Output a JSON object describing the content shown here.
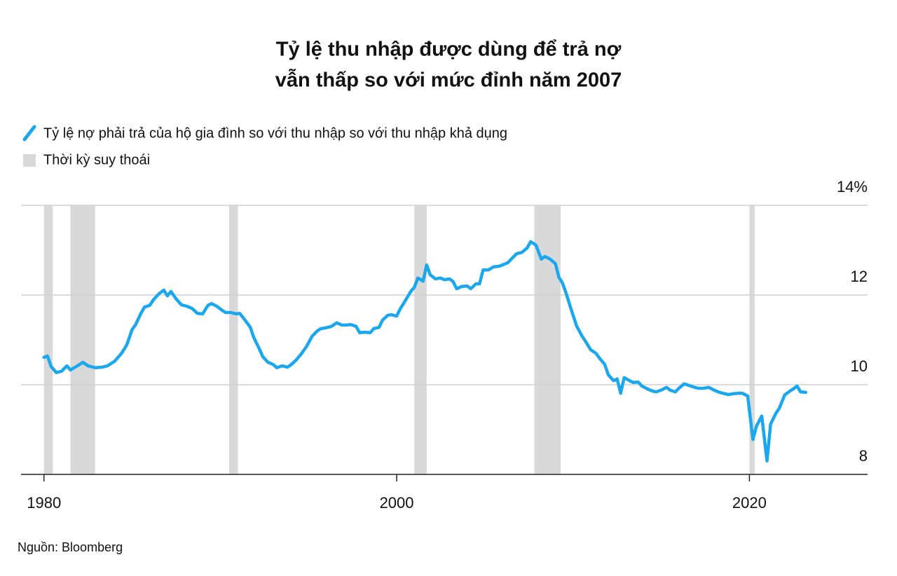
{
  "chart_data": {
    "type": "line",
    "title": [
      "Tỷ lệ thu nhập được dùng để trả nợ",
      "vẫn thấp so với mức đỉnh năm 2007"
    ],
    "source": "Nguồn: Bloomberg",
    "recession_label": "Thời kỳ suy thoái",
    "recession_color": "#d9d9d9",
    "recessions": [
      [
        1980.0,
        1980.5
      ],
      [
        1981.5,
        1982.9
      ],
      [
        1990.5,
        1991.0
      ],
      [
        2001.0,
        2001.7
      ],
      [
        2007.8,
        2009.3
      ],
      [
        2020.0,
        2020.3
      ]
    ],
    "xlim": [
      1978.7,
      2026.7
    ],
    "xticks": [
      1980,
      2000,
      2020
    ],
    "ylim": [
      8,
      14
    ],
    "yticks": [
      8,
      10,
      12,
      {
        "value": 14,
        "label": "14%"
      }
    ],
    "grid": true,
    "x": [
      1980.0,
      1980.2,
      1980.4,
      1980.7,
      1981.0,
      1981.3,
      1981.5,
      1981.9,
      1982.2,
      1982.5,
      1982.9,
      1983.3,
      1983.6,
      1984.0,
      1984.4,
      1984.7,
      1985.0,
      1985.2,
      1985.5,
      1985.7,
      1986.0,
      1986.2,
      1986.5,
      1986.8,
      1987.0,
      1987.2,
      1987.5,
      1987.8,
      1988.1,
      1988.4,
      1988.7,
      1989.0,
      1989.3,
      1989.5,
      1989.8,
      1990.1,
      1990.3,
      1990.6,
      1990.9,
      1991.1,
      1991.4,
      1991.7,
      1991.9,
      1992.2,
      1992.4,
      1992.7,
      1993.0,
      1993.2,
      1993.5,
      1993.8,
      1994.0,
      1994.3,
      1994.6,
      1994.9,
      1995.2,
      1995.5,
      1995.7,
      1996.0,
      1996.3,
      1996.6,
      1996.9,
      1997.1,
      1997.4,
      1997.7,
      1997.9,
      1998.2,
      1998.5,
      1998.7,
      1999.0,
      1999.2,
      1999.5,
      1999.7,
      2000.0,
      2000.2,
      2000.5,
      2000.8,
      2001.0,
      2001.2,
      2001.5,
      2001.7,
      2001.9,
      2002.2,
      2002.5,
      2002.7,
      2003.0,
      2003.2,
      2003.4,
      2003.7,
      2004.0,
      2004.2,
      2004.5,
      2004.7,
      2004.9,
      2005.2,
      2005.5,
      2005.8,
      2006.0,
      2006.3,
      2006.6,
      2006.8,
      2007.1,
      2007.4,
      2007.6,
      2007.9,
      2008.2,
      2008.4,
      2008.7,
      2009.0,
      2009.2,
      2009.4,
      2009.6,
      2009.9,
      2010.2,
      2010.5,
      2010.7,
      2011.0,
      2011.3,
      2011.5,
      2011.8,
      2012.0,
      2012.3,
      2012.5,
      2012.7,
      2012.9,
      2013.2,
      2013.4,
      2013.7,
      2013.9,
      2014.2,
      2014.5,
      2014.7,
      2015.0,
      2015.3,
      2015.5,
      2015.8,
      2016.0,
      2016.3,
      2016.6,
      2016.9,
      2017.1,
      2017.4,
      2017.7,
      2018.0,
      2018.3,
      2018.5,
      2018.8,
      2019.1,
      2019.4,
      2019.6,
      2019.9,
      2020.2,
      2020.4,
      2020.7,
      2021.0,
      2021.2,
      2021.5,
      2021.7,
      2022.0,
      2022.3,
      2022.5,
      2022.7,
      2022.9,
      2023.2
    ],
    "series": [
      {
        "name": "Tỷ lệ nợ phải trả của hộ gia đình so với thu nhập so với thu nhập khả dụng",
        "color": "#1aa7ee",
        "values": [
          10.61,
          10.64,
          10.41,
          10.27,
          10.3,
          10.42,
          10.33,
          10.42,
          10.5,
          10.42,
          10.38,
          10.39,
          10.42,
          10.52,
          10.7,
          10.89,
          11.23,
          11.34,
          11.59,
          11.73,
          11.77,
          11.89,
          12.02,
          12.11,
          11.98,
          12.08,
          11.91,
          11.78,
          11.75,
          11.7,
          11.59,
          11.58,
          11.77,
          11.81,
          11.75,
          11.66,
          11.61,
          11.61,
          11.58,
          11.59,
          11.44,
          11.28,
          11.05,
          10.81,
          10.63,
          10.5,
          10.45,
          10.38,
          10.42,
          10.39,
          10.44,
          10.55,
          10.69,
          10.86,
          11.08,
          11.2,
          11.25,
          11.27,
          11.3,
          11.38,
          11.33,
          11.33,
          11.34,
          11.3,
          11.16,
          11.17,
          11.16,
          11.25,
          11.28,
          11.44,
          11.55,
          11.56,
          11.53,
          11.69,
          11.88,
          12.08,
          12.17,
          12.38,
          12.31,
          12.67,
          12.45,
          12.36,
          12.38,
          12.34,
          12.36,
          12.3,
          12.14,
          12.19,
          12.2,
          12.14,
          12.25,
          12.25,
          12.56,
          12.56,
          12.63,
          12.64,
          12.67,
          12.72,
          12.84,
          12.92,
          12.95,
          13.05,
          13.19,
          13.11,
          12.8,
          12.86,
          12.8,
          12.7,
          12.39,
          12.27,
          12.05,
          11.67,
          11.31,
          11.09,
          10.97,
          10.78,
          10.7,
          10.59,
          10.45,
          10.22,
          10.09,
          10.13,
          9.81,
          10.16,
          10.09,
          10.05,
          10.06,
          9.97,
          9.91,
          9.86,
          9.84,
          9.88,
          9.94,
          9.88,
          9.84,
          9.92,
          10.02,
          9.98,
          9.94,
          9.92,
          9.92,
          9.94,
          9.88,
          9.83,
          9.81,
          9.78,
          9.8,
          9.81,
          9.81,
          9.75,
          8.78,
          9.08,
          9.3,
          8.3,
          9.12,
          9.36,
          9.48,
          9.77,
          9.86,
          9.91,
          9.97,
          9.84,
          9.83
        ]
      }
    ]
  }
}
